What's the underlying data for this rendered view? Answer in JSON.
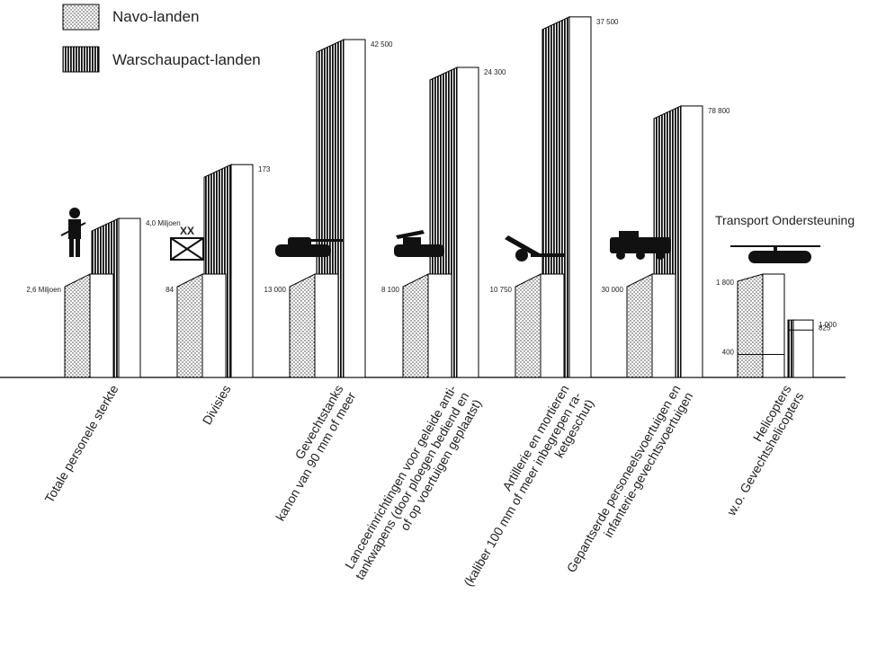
{
  "chart_data": {
    "type": "bar",
    "categories": [
      [
        "Totale personele sterkte"
      ],
      [
        "Divisies"
      ],
      [
        "Gevechtstanks",
        "kanon van 90 mm of meer"
      ],
      [
        "Lanceerinrichtingen voor geleide anti-",
        "tankwapens (door ploegen bediend en",
        "of op voertuigen geplaatst)"
      ],
      [
        "Artillerie en mortieren",
        "(kaliber 100 mm of meer inbegrepen ra-",
        "ketgeschut)"
      ],
      [
        "Gepantserde personeelsvoertuigen en",
        "infanterie-gevechtsvoertuigen"
      ],
      [
        "Helicopters",
        "w.o. Gevechtshelicopters"
      ]
    ],
    "series": [
      {
        "name": "Navo-landen",
        "pattern": "dots",
        "values": [
          2600000,
          84,
          13000,
          8100,
          10750,
          30000,
          1800
        ],
        "value_labels": [
          "2,6 Miljoen",
          "84",
          "13 000",
          "8 100",
          "10 750",
          "30 000",
          "1 800"
        ]
      },
      {
        "name": "Warschaupact-landen",
        "pattern": "stripes",
        "values": [
          4000000,
          173,
          42500,
          24300,
          37500,
          78800,
          1000
        ],
        "value_labels": [
          "4,0 Miljoen",
          "173",
          "42 500",
          "24 300",
          "37 500",
          "78 800",
          "1 000"
        ]
      }
    ],
    "helicopter_detail": {
      "header": "Transport Ondersteuning",
      "values": [
        400,
        825
      ],
      "value_labels": [
        "400",
        "825"
      ]
    }
  }
}
